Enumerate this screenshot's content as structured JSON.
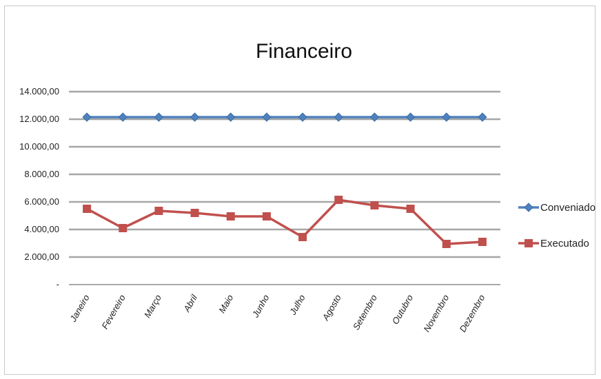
{
  "chart_data": {
    "type": "line",
    "title": "Financeiro",
    "categories": [
      "Janeiro",
      "Fevereiro",
      "Março",
      "Abril",
      "Maio",
      "Junho",
      "Julho",
      "Agosto",
      "Setembro",
      "Outubro",
      "Novembro",
      "Dezembro"
    ],
    "y_ticks": [
      "-",
      "2.000,00",
      "4.000,00",
      "6.000,00",
      "8.000,00",
      "10.000,00",
      "12.000,00",
      "14.000,00"
    ],
    "ylim": [
      0,
      14000
    ],
    "grid": true,
    "legend_position": "right",
    "series": [
      {
        "name": "Conveniado",
        "color": "#4f81bd",
        "marker": "diamond",
        "values": [
          12150,
          12150,
          12150,
          12150,
          12150,
          12150,
          12150,
          12150,
          12150,
          12150,
          12150,
          12150
        ]
      },
      {
        "name": "Executado",
        "color": "#c0504d",
        "marker": "square",
        "values": [
          5500,
          4100,
          5350,
          5200,
          4950,
          4950,
          3450,
          6150,
          5750,
          5500,
          2950,
          3100
        ]
      }
    ]
  }
}
